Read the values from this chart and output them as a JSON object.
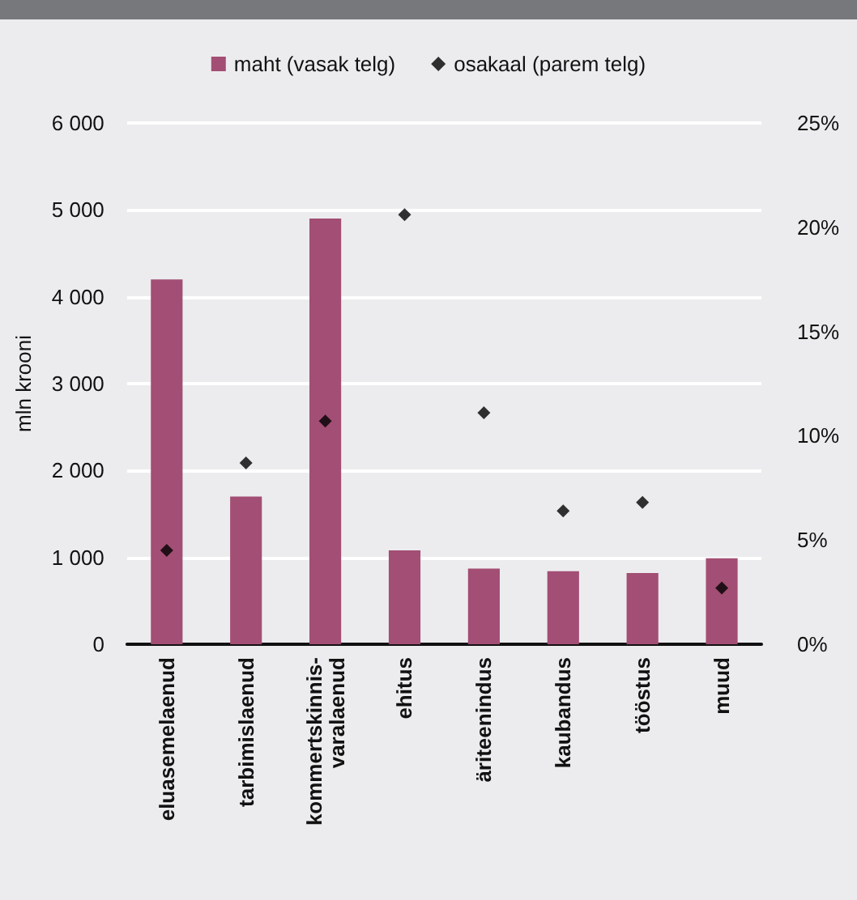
{
  "chart_data": {
    "type": "bar",
    "ylabel": "mln krooni",
    "categories": [
      "eluasemelaenud",
      "tarbimislaenud",
      "kommertskinnis-\nvaralaenud",
      "ehitus",
      "äriteenindus",
      "kaubandus",
      "tööstus",
      "muud"
    ],
    "series": [
      {
        "name": "maht (vasak telg)",
        "color": "#a34e74",
        "values": [
          4200,
          1700,
          4900,
          1080,
          870,
          840,
          820,
          990
        ]
      },
      {
        "name": "osakaal (parem telg)",
        "type": "scatter",
        "axis": "y2",
        "color": "#000000",
        "values": [
          4.5,
          8.7,
          10.7,
          20.6,
          11.1,
          6.4,
          6.8,
          2.7
        ]
      }
    ],
    "ylim": [
      0,
      6000
    ],
    "yticks": [
      0,
      {
        "value": 1000,
        "label": "1 000"
      },
      {
        "value": 2000,
        "label": "2 000"
      },
      {
        "value": 3000,
        "label": "3 000"
      },
      {
        "value": 4000,
        "label": "4 000"
      },
      {
        "value": 5000,
        "label": "5 000"
      },
      {
        "value": 6000,
        "label": "6 000"
      }
    ],
    "y2lim": [
      0,
      25
    ],
    "y2ticks": [
      {
        "value": 0,
        "label": "0%"
      },
      {
        "value": 5,
        "label": "5%"
      },
      {
        "value": 10,
        "label": "10%"
      },
      {
        "value": 15,
        "label": "15%"
      },
      {
        "value": 20,
        "label": "20%"
      },
      {
        "value": 25,
        "label": "25%"
      }
    ],
    "grid": "y",
    "legend": "top",
    "marker": "diamond"
  }
}
